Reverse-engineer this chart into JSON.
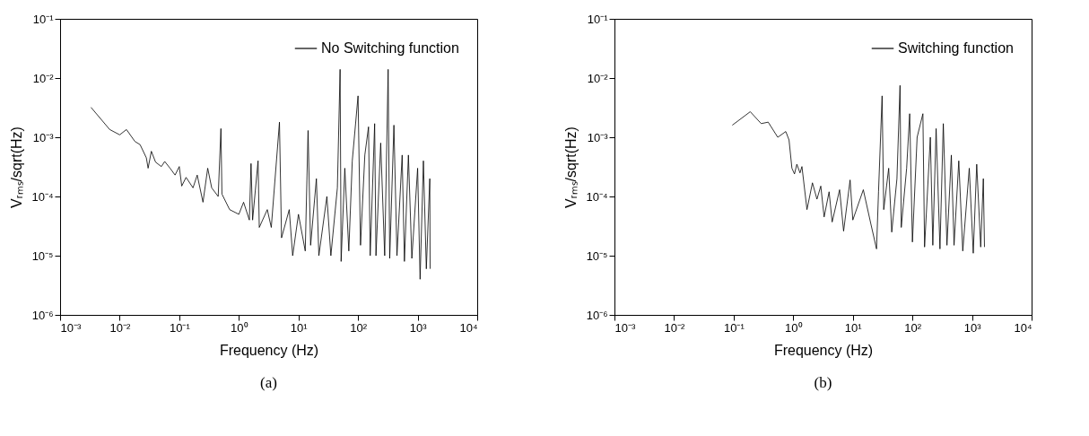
{
  "chart_data": [
    {
      "type": "line",
      "xlabel": "Frequency (Hz)",
      "ylabel": "Vᵣₘₛ/sqrt(Hz)",
      "log": "xy",
      "grid": false,
      "legend": "top right",
      "annotations": [
        "(a)"
      ],
      "line_style": "solid",
      "xlim": [
        0.001,
        10000
      ],
      "ylim": [
        1e-06,
        0.1
      ],
      "xticks": [
        {
          "value": 0.001,
          "label": "10⁻³"
        },
        {
          "value": 0.01,
          "label": "10⁻²"
        },
        {
          "value": 0.1,
          "label": "10⁻¹"
        },
        {
          "value": 1,
          "label": "10⁰"
        },
        {
          "value": 10,
          "label": "10¹"
        },
        {
          "value": 100,
          "label": "10²"
        },
        {
          "value": 1000,
          "label": "10³"
        },
        {
          "value": 10000,
          "label": "10⁴"
        }
      ],
      "yticks": [
        {
          "value": 1e-06,
          "label": "10⁻⁶"
        },
        {
          "value": 1e-05,
          "label": "10⁻⁵"
        },
        {
          "value": 0.0001,
          "label": "10⁻⁴"
        },
        {
          "value": 0.001,
          "label": "10⁻³"
        },
        {
          "value": 0.01,
          "label": "10⁻²"
        },
        {
          "value": 0.1,
          "label": "10⁻¹"
        }
      ],
      "series": [
        {
          "name": "No Switching function",
          "color": "#000000",
          "x": [
            0.0033,
            0.0068,
            0.01,
            0.013,
            0.018,
            0.022,
            0.028,
            0.03,
            0.034,
            0.04,
            0.05,
            0.057,
            0.07,
            0.085,
            0.1,
            0.11,
            0.13,
            0.17,
            0.2,
            0.25,
            0.3,
            0.35,
            0.45,
            0.5,
            0.52,
            0.7,
            1,
            1.2,
            1.5,
            1.6,
            1.7,
            2.1,
            2.2,
            3,
            3.5,
            4.8,
            5.2,
            7,
            8,
            10,
            13,
            14.5,
            16,
            20,
            22,
            30,
            35,
            45,
            50,
            52,
            60,
            70,
            80,
            100,
            110,
            130,
            150,
            160,
            190,
            200,
            240,
            280,
            320,
            340,
            400,
            450,
            550,
            600,
            700,
            800,
            1000,
            1100,
            1250,
            1400,
            1600,
            1620
          ],
          "values": [
            0.0032,
            0.00135,
            0.0011,
            0.00135,
            0.00085,
            0.00075,
            0.00045,
            0.0003,
            0.00058,
            0.00038,
            0.00032,
            0.00039,
            0.0003,
            0.00023,
            0.00032,
            0.00015,
            0.00021,
            0.00014,
            0.00023,
            8e-05,
            0.0003,
            0.00014,
            0.0001,
            0.0014,
            0.00011,
            6e-05,
            5e-05,
            8e-05,
            4e-05,
            0.00036,
            4e-05,
            0.0004,
            3e-05,
            6e-05,
            3e-05,
            0.0018,
            2e-05,
            6e-05,
            1e-05,
            5e-05,
            1.2e-05,
            0.0013,
            1.5e-05,
            0.0002,
            1e-05,
            0.0001,
            1e-05,
            0.00014,
            0.014,
            8e-06,
            0.0003,
            1.2e-05,
            0.0004,
            0.005,
            1.5e-05,
            0.0005,
            0.0015,
            1e-05,
            0.0017,
            1e-05,
            0.0008,
            1e-05,
            0.014,
            9e-06,
            0.0016,
            1e-05,
            0.0005,
            8e-06,
            0.0005,
            9e-06,
            0.0003,
            4e-06,
            0.0004,
            6e-06,
            0.0002,
            6e-06
          ]
        }
      ]
    },
    {
      "type": "line",
      "xlabel": "Frequency (Hz)",
      "ylabel": "Vᵣₘₛ/sqrt(Hz)",
      "log": "xy",
      "grid": false,
      "legend": "top right",
      "annotations": [
        "(b)"
      ],
      "line_style": "solid",
      "xlim": [
        0.001,
        10000
      ],
      "ylim": [
        1e-06,
        0.1
      ],
      "xticks": [
        {
          "value": 0.001,
          "label": "10⁻³"
        },
        {
          "value": 0.01,
          "label": "10⁻²"
        },
        {
          "value": 0.1,
          "label": "10⁻¹"
        },
        {
          "value": 1,
          "label": "10⁰"
        },
        {
          "value": 10,
          "label": "10¹"
        },
        {
          "value": 100,
          "label": "10²"
        },
        {
          "value": 1000,
          "label": "10³"
        },
        {
          "value": 10000,
          "label": "10⁴"
        }
      ],
      "yticks": [
        {
          "value": 1e-06,
          "label": "10⁻⁶"
        },
        {
          "value": 1e-05,
          "label": "10⁻⁵"
        },
        {
          "value": 0.0001,
          "label": "10⁻⁴"
        },
        {
          "value": 0.001,
          "label": "10⁻³"
        },
        {
          "value": 0.01,
          "label": "10⁻²"
        },
        {
          "value": 0.1,
          "label": "10⁻¹"
        }
      ],
      "series": [
        {
          "name": "Switching function",
          "color": "#000000",
          "x": [
            0.095,
            0.19,
            0.29,
            0.38,
            0.55,
            0.75,
            0.85,
            0.95,
            1.05,
            1.15,
            1.3,
            1.4,
            1.7,
            2.1,
            2.5,
            2.9,
            3.3,
            4,
            4.5,
            6,
            7,
            9,
            10,
            15,
            20,
            25,
            27,
            31,
            33,
            40,
            45,
            55,
            62,
            65,
            80,
            90,
            100,
            120,
            150,
            160,
            200,
            220,
            250,
            290,
            330,
            380,
            450,
            500,
            600,
            700,
            900,
            1050,
            1200,
            1400,
            1550,
            1620
          ],
          "values": [
            0.0016,
            0.0027,
            0.0017,
            0.0018,
            0.001,
            0.00125,
            0.0009,
            0.0003,
            0.00024,
            0.00035,
            0.00025,
            0.00032,
            6e-05,
            0.00017,
            9e-05,
            0.00015,
            4.5e-05,
            0.00012,
            3.7e-05,
            0.00013,
            2.6e-05,
            0.00019,
            4e-05,
            0.00013,
            3.5e-05,
            1.3e-05,
            0.00012,
            0.005,
            6e-05,
            0.0003,
            2.5e-05,
            0.0002,
            0.0075,
            3e-05,
            0.0003,
            0.0025,
            1.7e-05,
            0.001,
            0.0025,
            1.4e-05,
            0.001,
            1.5e-05,
            0.0014,
            1.3e-05,
            0.0017,
            1.5e-05,
            0.0005,
            1.5e-05,
            0.0004,
            1.2e-05,
            0.0003,
            1.1e-05,
            0.00035,
            1.4e-05,
            0.0002,
            1.4e-05
          ]
        }
      ]
    }
  ]
}
